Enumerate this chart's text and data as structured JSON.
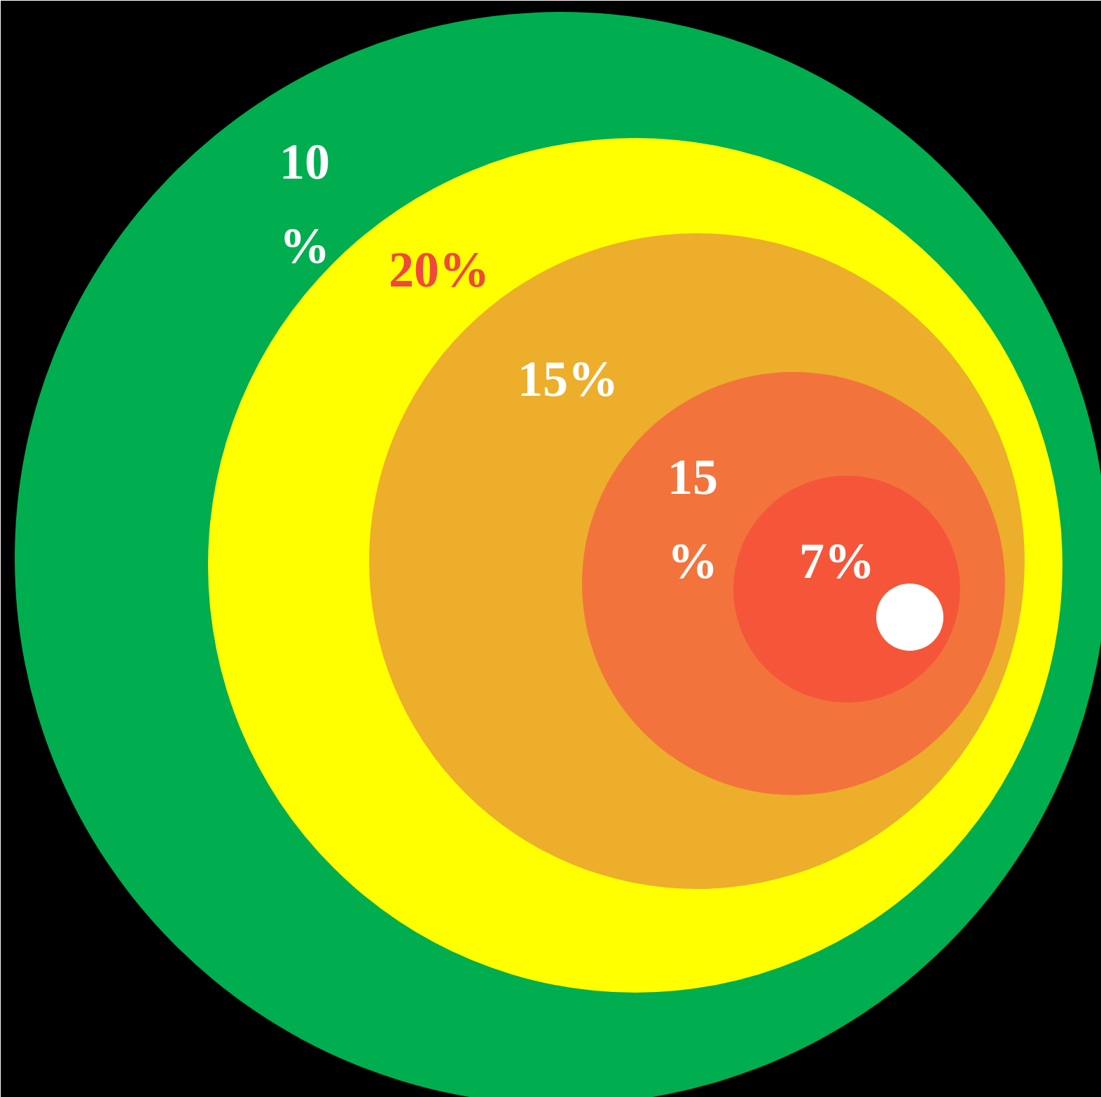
{
  "chart_data": {
    "type": "other",
    "categories": [
      null,
      null,
      null,
      null,
      null
    ],
    "values": [
      10,
      20,
      15,
      15,
      7
    ],
    "colors": [
      "#00ae4f",
      "#ffff00",
      "#edae2b",
      "#f2743c",
      "#f5563a"
    ],
    "value_labels": [
      "10\n%",
      "20%",
      "15%",
      "15\n%",
      "7%"
    ]
  }
}
